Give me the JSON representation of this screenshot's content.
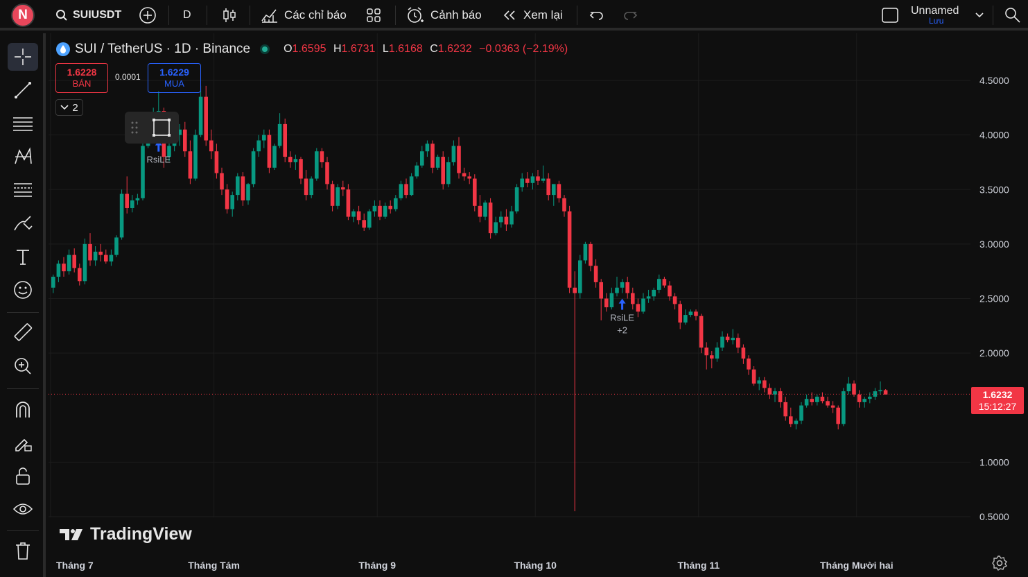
{
  "topbar": {
    "avatar_letter": "N",
    "symbol": "SUIUSDT",
    "interval": "D",
    "indicators_label": "Các chỉ báo",
    "alerts_label": "Cảnh báo",
    "replay_label": "Xem lại",
    "layout_name": "Unnamed",
    "save_label": "Lưu"
  },
  "legend": {
    "title": "SUI / TetherUS · 1D · Binance",
    "o_label": "O",
    "o": "1.6595",
    "h_label": "H",
    "h": "1.6731",
    "l_label": "L",
    "l": "1.6168",
    "c_label": "C",
    "c": "1.6232",
    "change": "−0.0363 (−2.19%)"
  },
  "trade": {
    "sell_price": "1.6228",
    "sell_label": "BÁN",
    "spread": "0.0001",
    "buy_price": "1.6229",
    "buy_label": "MUA",
    "collapse_count": "2"
  },
  "price_tag": {
    "price": "1.6232",
    "countdown": "15:12:27"
  },
  "brand": "TradingView",
  "colors": {
    "up": "#089981",
    "down": "#f23645",
    "background": "#0f0f0f",
    "buy": "#2962ff"
  },
  "chart_data": {
    "type": "candlestick",
    "title": "SUI / TetherUS · 1D · Binance",
    "y_ticks": [
      "4.5000",
      "4.0000",
      "3.5000",
      "3.0000",
      "2.5000",
      "2.0000",
      "1.0000",
      "0.5000"
    ],
    "ylim": [
      0.4,
      4.7
    ],
    "x_labels": [
      "Tháng 7",
      "Tháng Tám",
      "Tháng 9",
      "Tháng 10",
      "Tháng 11",
      "Tháng Mười hai"
    ],
    "x_label_index": [
      0,
      31,
      62,
      92,
      123,
      153
    ],
    "last_price": 1.6232,
    "signals": [
      {
        "label": "RsiLE",
        "index": 108,
        "extra": "+2"
      },
      {
        "label": "RsiLE",
        "index": 20,
        "extra": ""
      }
    ],
    "ohlc": [
      [
        2.6,
        2.72,
        2.55,
        2.7
      ],
      [
        2.7,
        2.85,
        2.65,
        2.82
      ],
      [
        2.82,
        2.88,
        2.7,
        2.75
      ],
      [
        2.75,
        2.95,
        2.72,
        2.9
      ],
      [
        2.9,
        2.96,
        2.74,
        2.78
      ],
      [
        2.78,
        2.82,
        2.62,
        2.66
      ],
      [
        2.66,
        3.05,
        2.63,
        3.0
      ],
      [
        3.0,
        3.1,
        2.8,
        2.85
      ],
      [
        2.85,
        2.98,
        2.8,
        2.93
      ],
      [
        2.93,
        3.0,
        2.84,
        2.9
      ],
      [
        2.9,
        2.95,
        2.82,
        2.84
      ],
      [
        2.84,
        2.95,
        2.8,
        2.9
      ],
      [
        2.9,
        3.08,
        2.88,
        3.06
      ],
      [
        3.06,
        3.5,
        3.04,
        3.46
      ],
      [
        3.46,
        3.62,
        3.28,
        3.33
      ],
      [
        3.33,
        3.45,
        3.29,
        3.4
      ],
      [
        3.4,
        3.46,
        3.36,
        3.42
      ],
      [
        3.42,
        3.95,
        3.4,
        3.9
      ],
      [
        3.9,
        4.1,
        3.88,
        4.05
      ],
      [
        4.05,
        4.25,
        3.95,
        4.1
      ],
      [
        4.1,
        4.4,
        4.0,
        4.22
      ],
      [
        4.22,
        4.25,
        3.7,
        3.8
      ],
      [
        3.8,
        4.0,
        3.76,
        3.9
      ],
      [
        3.9,
        4.05,
        3.85,
        4.0
      ],
      [
        4.0,
        4.1,
        3.9,
        4.05
      ],
      [
        4.05,
        4.12,
        3.8,
        3.85
      ],
      [
        3.85,
        3.95,
        3.55,
        3.6
      ],
      [
        3.6,
        4.05,
        3.58,
        4.0
      ],
      [
        4.0,
        4.45,
        3.98,
        4.35
      ],
      [
        4.35,
        4.45,
        3.9,
        3.95
      ],
      [
        3.95,
        4.05,
        3.78,
        3.85
      ],
      [
        3.85,
        3.92,
        3.6,
        3.65
      ],
      [
        3.65,
        3.7,
        3.45,
        3.5
      ],
      [
        3.5,
        3.55,
        3.28,
        3.32
      ],
      [
        3.32,
        3.48,
        3.25,
        3.45
      ],
      [
        3.45,
        3.65,
        3.4,
        3.62
      ],
      [
        3.62,
        3.66,
        3.35,
        3.4
      ],
      [
        3.4,
        3.56,
        3.36,
        3.55
      ],
      [
        3.55,
        3.88,
        3.52,
        3.85
      ],
      [
        3.85,
        4.0,
        3.8,
        3.95
      ],
      [
        3.95,
        4.05,
        3.88,
        4.0
      ],
      [
        4.0,
        4.05,
        3.65,
        3.7
      ],
      [
        3.7,
        3.92,
        3.68,
        3.9
      ],
      [
        3.9,
        4.2,
        3.88,
        4.1
      ],
      [
        4.1,
        4.15,
        3.75,
        3.8
      ],
      [
        3.8,
        3.85,
        3.7,
        3.75
      ],
      [
        3.75,
        3.82,
        3.68,
        3.78
      ],
      [
        3.78,
        3.8,
        3.55,
        3.6
      ],
      [
        3.6,
        3.68,
        3.4,
        3.45
      ],
      [
        3.45,
        3.62,
        3.42,
        3.6
      ],
      [
        3.6,
        3.88,
        3.58,
        3.85
      ],
      [
        3.85,
        3.88,
        3.7,
        3.75
      ],
      [
        3.75,
        3.8,
        3.5,
        3.55
      ],
      [
        3.55,
        3.58,
        3.3,
        3.35
      ],
      [
        3.35,
        3.55,
        3.32,
        3.52
      ],
      [
        3.52,
        3.58,
        3.44,
        3.5
      ],
      [
        3.5,
        3.55,
        3.22,
        3.25
      ],
      [
        3.25,
        3.32,
        3.2,
        3.3
      ],
      [
        3.3,
        3.35,
        3.18,
        3.22
      ],
      [
        3.22,
        3.28,
        3.12,
        3.15
      ],
      [
        3.15,
        3.32,
        3.13,
        3.3
      ],
      [
        3.3,
        3.4,
        3.25,
        3.35
      ],
      [
        3.35,
        3.4,
        3.22,
        3.25
      ],
      [
        3.25,
        3.38,
        3.23,
        3.35
      ],
      [
        3.35,
        3.4,
        3.28,
        3.32
      ],
      [
        3.32,
        3.45,
        3.3,
        3.42
      ],
      [
        3.42,
        3.58,
        3.4,
        3.55
      ],
      [
        3.55,
        3.6,
        3.42,
        3.45
      ],
      [
        3.45,
        3.65,
        3.44,
        3.62
      ],
      [
        3.62,
        3.75,
        3.6,
        3.72
      ],
      [
        3.72,
        3.9,
        3.7,
        3.85
      ],
      [
        3.85,
        3.95,
        3.8,
        3.92
      ],
      [
        3.92,
        3.95,
        3.65,
        3.7
      ],
      [
        3.7,
        3.82,
        3.68,
        3.8
      ],
      [
        3.8,
        3.85,
        3.5,
        3.55
      ],
      [
        3.55,
        3.8,
        3.52,
        3.75
      ],
      [
        3.75,
        3.95,
        3.72,
        3.9
      ],
      [
        3.9,
        3.98,
        3.6,
        3.65
      ],
      [
        3.65,
        3.7,
        3.58,
        3.62
      ],
      [
        3.62,
        3.66,
        3.55,
        3.6
      ],
      [
        3.6,
        3.64,
        3.3,
        3.35
      ],
      [
        3.35,
        3.45,
        3.2,
        3.25
      ],
      [
        3.25,
        3.4,
        3.22,
        3.38
      ],
      [
        3.38,
        3.42,
        3.05,
        3.1
      ],
      [
        3.1,
        3.25,
        3.08,
        3.2
      ],
      [
        3.2,
        3.3,
        3.15,
        3.25
      ],
      [
        3.25,
        3.32,
        3.12,
        3.18
      ],
      [
        3.18,
        3.35,
        3.15,
        3.3
      ],
      [
        3.3,
        3.55,
        3.28,
        3.52
      ],
      [
        3.52,
        3.65,
        3.48,
        3.6
      ],
      [
        3.6,
        3.66,
        3.52,
        3.56
      ],
      [
        3.56,
        3.65,
        3.5,
        3.62
      ],
      [
        3.62,
        3.68,
        3.54,
        3.58
      ],
      [
        3.58,
        3.72,
        3.56,
        3.6
      ],
      [
        3.6,
        3.65,
        3.4,
        3.45
      ],
      [
        3.45,
        3.55,
        3.35,
        3.55
      ],
      [
        3.55,
        3.58,
        3.38,
        3.42
      ],
      [
        3.42,
        3.45,
        3.25,
        3.3
      ],
      [
        3.3,
        3.35,
        2.55,
        2.6
      ],
      [
        2.6,
        2.75,
        0.55,
        2.55
      ],
      [
        2.55,
        2.9,
        2.5,
        2.85
      ],
      [
        2.85,
        3.02,
        2.82,
        3.0
      ],
      [
        3.0,
        3.02,
        2.75,
        2.8
      ],
      [
        2.8,
        2.86,
        2.6,
        2.65
      ],
      [
        2.65,
        2.68,
        2.3,
        2.5
      ],
      [
        2.5,
        2.55,
        2.38,
        2.42
      ],
      [
        2.42,
        2.6,
        2.4,
        2.55
      ],
      [
        2.55,
        2.7,
        2.52,
        2.6
      ],
      [
        2.6,
        2.68,
        2.55,
        2.65
      ],
      [
        2.65,
        2.7,
        2.5,
        2.55
      ],
      [
        2.55,
        2.6,
        2.4,
        2.45
      ],
      [
        2.45,
        2.5,
        2.33,
        2.38
      ],
      [
        2.38,
        2.55,
        2.36,
        2.5
      ],
      [
        2.5,
        2.58,
        2.46,
        2.52
      ],
      [
        2.52,
        2.6,
        2.48,
        2.58
      ],
      [
        2.58,
        2.72,
        2.55,
        2.68
      ],
      [
        2.68,
        2.7,
        2.6,
        2.62
      ],
      [
        2.62,
        2.66,
        2.48,
        2.52
      ],
      [
        2.52,
        2.55,
        2.4,
        2.45
      ],
      [
        2.45,
        2.48,
        2.22,
        2.28
      ],
      [
        2.28,
        2.4,
        2.26,
        2.35
      ],
      [
        2.35,
        2.4,
        2.33,
        2.38
      ],
      [
        2.38,
        2.4,
        2.3,
        2.34
      ],
      [
        2.34,
        2.36,
        2.0,
        2.05
      ],
      [
        2.05,
        2.1,
        1.85,
        1.98
      ],
      [
        1.98,
        2.02,
        1.86,
        1.95
      ],
      [
        1.95,
        2.1,
        1.92,
        2.05
      ],
      [
        2.05,
        2.2,
        2.02,
        2.15
      ],
      [
        2.15,
        2.18,
        2.1,
        2.12
      ],
      [
        2.12,
        2.22,
        2.08,
        2.14
      ],
      [
        2.14,
        2.18,
        2.0,
        2.05
      ],
      [
        2.05,
        2.08,
        1.9,
        1.95
      ],
      [
        1.95,
        1.98,
        1.8,
        1.85
      ],
      [
        1.85,
        1.88,
        1.7,
        1.72
      ],
      [
        1.72,
        1.78,
        1.66,
        1.75
      ],
      [
        1.75,
        1.78,
        1.64,
        1.68
      ],
      [
        1.68,
        1.72,
        1.58,
        1.62
      ],
      [
        1.62,
        1.68,
        1.55,
        1.65
      ],
      [
        1.65,
        1.68,
        1.5,
        1.55
      ],
      [
        1.55,
        1.6,
        1.38,
        1.42
      ],
      [
        1.42,
        1.5,
        1.32,
        1.35
      ],
      [
        1.35,
        1.4,
        1.3,
        1.38
      ],
      [
        1.38,
        1.55,
        1.35,
        1.52
      ],
      [
        1.52,
        1.62,
        1.5,
        1.58
      ],
      [
        1.58,
        1.64,
        1.52,
        1.55
      ],
      [
        1.55,
        1.62,
        1.52,
        1.6
      ],
      [
        1.6,
        1.64,
        1.54,
        1.56
      ],
      [
        1.56,
        1.6,
        1.5,
        1.52
      ],
      [
        1.52,
        1.56,
        1.45,
        1.5
      ],
      [
        1.5,
        1.52,
        1.3,
        1.35
      ],
      [
        1.35,
        1.68,
        1.33,
        1.65
      ],
      [
        1.65,
        1.78,
        1.62,
        1.72
      ],
      [
        1.72,
        1.75,
        1.6,
        1.62
      ],
      [
        1.62,
        1.66,
        1.5,
        1.55
      ],
      [
        1.55,
        1.6,
        1.5,
        1.58
      ],
      [
        1.58,
        1.64,
        1.54,
        1.6
      ],
      [
        1.6,
        1.68,
        1.57,
        1.65
      ],
      [
        1.65,
        1.74,
        1.62,
        1.66
      ],
      [
        1.66,
        1.67,
        1.62,
        1.62
      ]
    ]
  }
}
